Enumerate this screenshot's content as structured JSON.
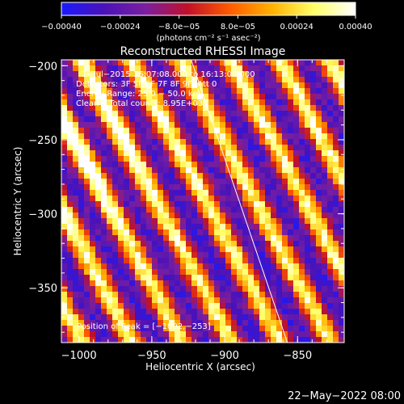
{
  "chart_data": {
    "type": "heatmap",
    "title": "Reconstructed RHESSI Image",
    "xlabel": "Heliocentric X (arcsec)",
    "ylabel": "Heliocentric Y (arcsec)",
    "xlim": [
      -1012,
      -818
    ],
    "ylim": [
      -387,
      -196
    ],
    "x_ticks": [
      -1000,
      -950,
      -900,
      -850
    ],
    "x_tick_labels": [
      "−1000",
      "−950",
      "−900",
      "−850"
    ],
    "y_ticks": [
      -200,
      -250,
      -300,
      -350
    ],
    "y_tick_labels": [
      "−200",
      "−250",
      "−300",
      "−350"
    ],
    "colorbar": {
      "range": [
        -0.0004,
        0.0004
      ],
      "tick_labels": [
        "−0.00040",
        "−0.00024",
        "−8.0e−05",
        "8.0e−05",
        "0.00024",
        "0.00040"
      ],
      "unit_label": "(photons cm⁻² s⁻¹ asec⁻²)",
      "colors": [
        "#1a1aff",
        "#4a12b8",
        "#7a1fa0",
        "#c0102a",
        "#ff5a00",
        "#ffb000",
        "#ffff66",
        "#ffffff"
      ]
    },
    "annotations": [
      "1−Jul−2015 16:07:08.000 to 16:13:08.000",
      "Detectors: 3F 5F 6F 7F 8F 9F, Att 0",
      "Energy Range: 25.0 − 50.0 keV",
      "Clean    Total counts: 8.95E+03"
    ],
    "peak_label": "Position of Peak = [−1002,−253]",
    "peak": [
      -1002,
      -253
    ],
    "limb_line": [
      [
        -923,
        -196
      ],
      [
        -857,
        -387
      ]
    ],
    "stripe_direction_deg": 62,
    "stripe_period_arcsec": 30,
    "grid": false
  },
  "footer": {
    "date": "22−May−2022 08:00"
  }
}
